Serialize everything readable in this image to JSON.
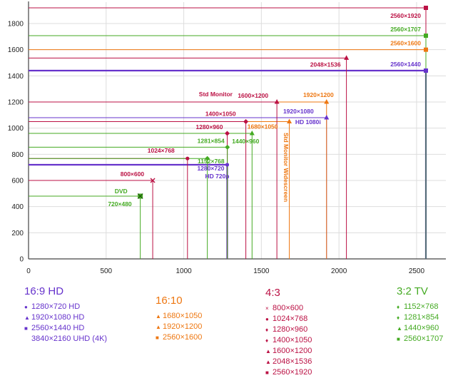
{
  "chart_data": {
    "type": "line",
    "title": "",
    "xlabel": "",
    "ylabel": "",
    "xlim": [
      0,
      2560
    ],
    "ylim": [
      0,
      1920
    ],
    "x_ticks": [
      0,
      500,
      1000,
      1500,
      2000,
      2500
    ],
    "y_ticks": [
      0,
      200,
      400,
      600,
      800,
      1000,
      1200,
      1400,
      1600,
      1800
    ],
    "grid": true,
    "series": [
      {
        "name": "16:9 HD",
        "color": "#6633cc",
        "resolutions": [
          {
            "label": "1280×720",
            "extra": "HD 720p",
            "w": 1280,
            "h": 720,
            "marker": "circle"
          },
          {
            "label": "1920×1080",
            "extra": "HD 1080i",
            "w": 1920,
            "h": 1080,
            "marker": "triangle"
          },
          {
            "label": "2560×1440",
            "w": 2560,
            "h": 1440,
            "marker": "square"
          }
        ]
      },
      {
        "name": "16:10",
        "color": "#ee7711",
        "resolutions": [
          {
            "label": "1680×1050",
            "w": 1680,
            "h": 1050,
            "marker": "triangle"
          },
          {
            "label": "1920×1200",
            "w": 1920,
            "h": 1200,
            "marker": "triangle"
          },
          {
            "label": "2560×1600",
            "w": 2560,
            "h": 1600,
            "marker": "square"
          }
        ]
      },
      {
        "name": "4:3",
        "color": "#bb1144",
        "resolutions": [
          {
            "label": "800×600",
            "w": 800,
            "h": 600,
            "marker": "x"
          },
          {
            "label": "1024×768",
            "w": 1024,
            "h": 768,
            "marker": "circle"
          },
          {
            "label": "1280×960",
            "w": 1280,
            "h": 960,
            "marker": "diamond"
          },
          {
            "label": "1400×1050",
            "w": 1400,
            "h": 1050,
            "marker": "diamond"
          },
          {
            "label": "1600×1200",
            "w": 1600,
            "h": 1200,
            "marker": "triangle"
          },
          {
            "label": "2048×1536",
            "w": 2048,
            "h": 1536,
            "marker": "triangle"
          },
          {
            "label": "2560×1920",
            "w": 2560,
            "h": 1920,
            "marker": "square"
          }
        ]
      },
      {
        "name": "3:2 TV",
        "color": "#44aa22",
        "resolutions": [
          {
            "label": "720×480",
            "extra": "DVD",
            "w": 720,
            "h": 480,
            "marker": "square-x"
          },
          {
            "label": "1152×768",
            "w": 1152,
            "h": 768,
            "marker": "diamond"
          },
          {
            "label": "1281×854",
            "w": 1281,
            "h": 854,
            "marker": "diamond"
          },
          {
            "label": "1440×960",
            "w": 1440,
            "h": 960,
            "marker": "triangle"
          },
          {
            "label": "2560×1707",
            "w": 2560,
            "h": 1707,
            "marker": "square"
          }
        ]
      }
    ],
    "annotations": [
      {
        "text": "Std Monitor",
        "color": "#bb1144"
      },
      {
        "text": "Std Monitor Widescreen",
        "color": "#ee7711"
      }
    ]
  },
  "legend": {
    "groups": [
      {
        "title": "16:9 HD",
        "color": "#6633cc",
        "items": [
          {
            "sym": "●",
            "text": "1280×720 HD"
          },
          {
            "sym": "▲",
            "text": "1920×1080 HD"
          },
          {
            "sym": "■",
            "text": "2560×1440 HD"
          },
          {
            "sym": "",
            "text": "3840×2160 UHD (4K)"
          }
        ]
      },
      {
        "title": "16:10",
        "color": "#ee7711",
        "items": [
          {
            "sym": "▲",
            "text": "1680×1050"
          },
          {
            "sym": "▲",
            "text": "1920×1200"
          },
          {
            "sym": "■",
            "text": "2560×1600"
          }
        ]
      },
      {
        "title": "4:3",
        "color": "#bb1144",
        "items": [
          {
            "sym": "×",
            "text": "800×600"
          },
          {
            "sym": "●",
            "text": "1024×768"
          },
          {
            "sym": "♦",
            "text": "1280×960"
          },
          {
            "sym": "♦",
            "text": "1400×1050"
          },
          {
            "sym": "▲",
            "text": "1600×1200"
          },
          {
            "sym": "▲",
            "text": "2048×1536"
          },
          {
            "sym": "■",
            "text": "2560×1920"
          }
        ]
      },
      {
        "title": "3:2 TV",
        "color": "#44aa22",
        "items": [
          {
            "sym": "♦",
            "text": "1152×768"
          },
          {
            "sym": "♦",
            "text": "1281×854"
          },
          {
            "sym": "▲",
            "text": "1440×960"
          },
          {
            "sym": "■",
            "text": "2560×1707"
          }
        ]
      }
    ]
  }
}
